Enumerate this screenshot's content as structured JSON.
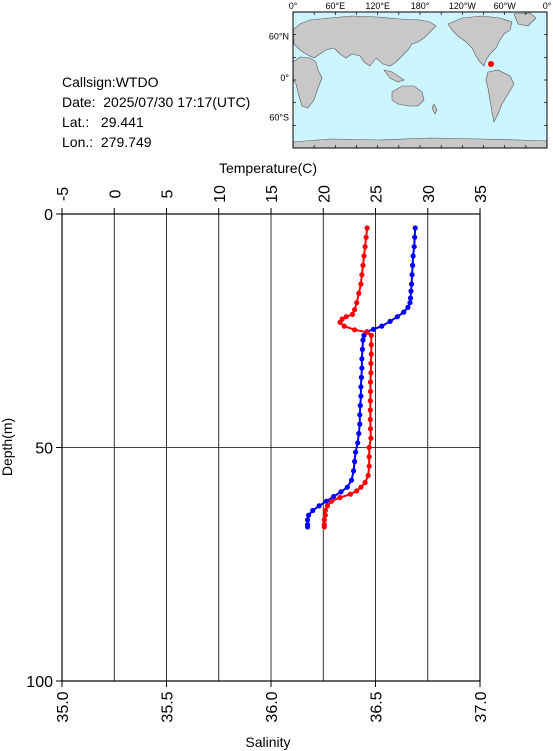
{
  "info": {
    "callsign": "Callsign:WTDO",
    "date_label": "Date:",
    "date_value": "2025/07/30 17:17(UTC)",
    "lat_label": "Lat.:",
    "lat_value": "29.441",
    "lon_label": "Lon.:",
    "lon_value": "279.749"
  },
  "map": {
    "top_labels": [
      "0°",
      "60°E",
      "120°E",
      "180°",
      "120°W",
      "60°W",
      "0°"
    ],
    "left_labels": [
      "60°N",
      "0°",
      "60°S"
    ],
    "ocean_color": "#cdf5ff",
    "land_color": "#c8c8c8",
    "marker_color": "#ff0000"
  },
  "chart_data": {
    "type": "scatter",
    "title": "",
    "xlabel_top": "Temperature(C)",
    "xlabel_bottom": "Salinity",
    "ylabel": "Depth(m)",
    "temperature_axis": {
      "range": [
        -5,
        35
      ],
      "ticks": [
        "-5",
        "0",
        "5",
        "10",
        "15",
        "20",
        "25",
        "30",
        "35"
      ]
    },
    "salinity_axis": {
      "range": [
        35.0,
        37.0
      ],
      "ticks": [
        "35.0",
        "35.5",
        "36.0",
        "36.5",
        "37.0"
      ]
    },
    "depth_axis": {
      "range": [
        0,
        100
      ],
      "ticks": [
        "0",
        "50",
        "100"
      ]
    },
    "grid": true,
    "series": [
      {
        "color": "#0000ff",
        "axis": "temperature",
        "points": [
          [
            28.8,
            3
          ],
          [
            28.75,
            5
          ],
          [
            28.7,
            7
          ],
          [
            28.6,
            9
          ],
          [
            28.55,
            11
          ],
          [
            28.5,
            13
          ],
          [
            28.45,
            15
          ],
          [
            28.4,
            16.5
          ],
          [
            28.35,
            18
          ],
          [
            28.3,
            19
          ],
          [
            28.1,
            20
          ],
          [
            27.7,
            21
          ],
          [
            27.1,
            22
          ],
          [
            26.4,
            23
          ],
          [
            25.6,
            24
          ],
          [
            24.8,
            24.7
          ],
          [
            24.2,
            25.2
          ],
          [
            23.9,
            26
          ],
          [
            23.8,
            27
          ],
          [
            23.75,
            29
          ],
          [
            23.7,
            31
          ],
          [
            23.7,
            33
          ],
          [
            23.65,
            35
          ],
          [
            23.6,
            37
          ],
          [
            23.6,
            39
          ],
          [
            23.55,
            41
          ],
          [
            23.5,
            43
          ],
          [
            23.5,
            45
          ],
          [
            23.4,
            47
          ],
          [
            23.3,
            49
          ],
          [
            23.1,
            51
          ],
          [
            23.0,
            53
          ],
          [
            22.9,
            55
          ],
          [
            22.7,
            57
          ],
          [
            22.3,
            58.5
          ],
          [
            21.7,
            59.5
          ],
          [
            21.0,
            60.5
          ],
          [
            20.3,
            61.5
          ],
          [
            19.6,
            62.5
          ],
          [
            19.0,
            63.5
          ],
          [
            18.6,
            64.5
          ],
          [
            18.5,
            65.5
          ],
          [
            18.5,
            66.5
          ],
          [
            18.5,
            67
          ]
        ]
      },
      {
        "color": "#ff0000",
        "axis": "salinity",
        "points": [
          [
            36.46,
            3
          ],
          [
            36.455,
            5
          ],
          [
            36.45,
            7
          ],
          [
            36.445,
            9
          ],
          [
            36.44,
            11
          ],
          [
            36.435,
            13
          ],
          [
            36.43,
            15
          ],
          [
            36.42,
            17
          ],
          [
            36.41,
            19
          ],
          [
            36.4,
            20.5
          ],
          [
            36.39,
            21.5
          ],
          [
            36.36,
            22
          ],
          [
            36.34,
            22.5
          ],
          [
            36.33,
            23.2
          ],
          [
            36.35,
            24
          ],
          [
            36.4,
            24.8
          ],
          [
            36.46,
            25.3
          ],
          [
            36.48,
            26
          ],
          [
            36.48,
            28
          ],
          [
            36.48,
            30
          ],
          [
            36.478,
            32
          ],
          [
            36.478,
            34
          ],
          [
            36.476,
            36
          ],
          [
            36.476,
            38
          ],
          [
            36.475,
            40
          ],
          [
            36.475,
            42
          ],
          [
            36.475,
            44
          ],
          [
            36.476,
            46
          ],
          [
            36.478,
            48
          ],
          [
            36.47,
            50
          ],
          [
            36.47,
            52
          ],
          [
            36.47,
            54
          ],
          [
            36.465,
            56
          ],
          [
            36.45,
            57.5
          ],
          [
            36.43,
            58.5
          ],
          [
            36.41,
            59.3
          ],
          [
            36.38,
            60
          ],
          [
            36.33,
            60.7
          ],
          [
            36.29,
            61.5
          ],
          [
            36.27,
            62.5
          ],
          [
            36.26,
            63.5
          ],
          [
            36.26,
            64.5
          ],
          [
            36.255,
            65.5
          ],
          [
            36.255,
            66.5
          ],
          [
            36.255,
            67
          ]
        ]
      }
    ]
  }
}
